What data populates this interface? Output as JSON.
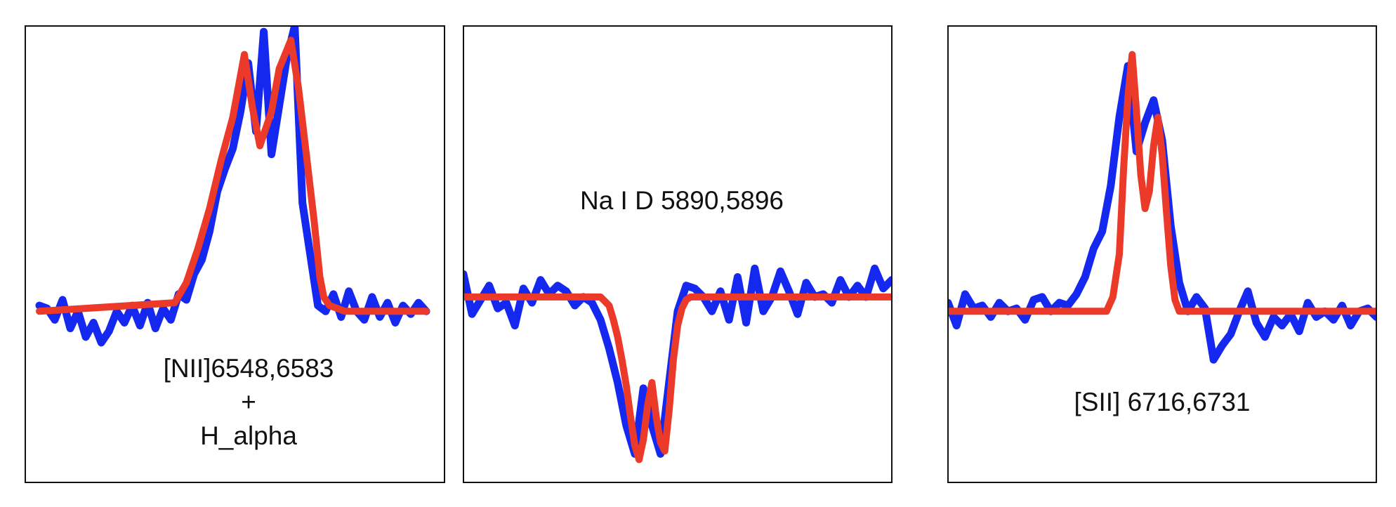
{
  "colors": {
    "observed": "#1428f0",
    "model": "#ec3a2a",
    "frame": "#111111",
    "background": "#ffffff"
  },
  "chart_data": [
    {
      "type": "line",
      "label_lines": [
        "[NII]6548,6583",
        "+",
        "H_alpha"
      ],
      "xlim": [
        0,
        100
      ],
      "ylim": [
        -0.6,
        1.0
      ],
      "series": [
        {
          "role": "observed",
          "x": [
            0,
            2,
            4,
            6,
            8,
            10,
            12,
            14,
            16,
            18,
            20,
            22,
            24,
            26,
            28,
            30,
            32,
            34,
            36,
            38,
            40,
            42,
            44,
            46,
            48,
            50,
            52,
            54,
            56,
            58,
            60,
            62,
            64,
            66,
            68,
            70,
            72,
            74,
            76,
            78,
            80,
            82,
            84,
            86,
            88,
            90,
            92,
            94,
            96,
            98,
            100
          ],
          "y": [
            0.02,
            0.01,
            -0.03,
            0.04,
            -0.06,
            0.0,
            -0.09,
            -0.04,
            -0.11,
            -0.07,
            0.0,
            -0.04,
            0.02,
            -0.05,
            0.03,
            -0.06,
            0.01,
            -0.03,
            0.06,
            0.04,
            0.13,
            0.18,
            0.28,
            0.42,
            0.5,
            0.57,
            0.7,
            0.87,
            0.63,
            0.98,
            0.55,
            0.72,
            0.89,
            1.0,
            0.38,
            0.2,
            0.02,
            0.0,
            0.06,
            -0.02,
            0.07,
            0.0,
            -0.03,
            0.05,
            -0.02,
            0.03,
            -0.04,
            0.02,
            -0.01,
            0.03,
            0.0
          ]
        },
        {
          "role": "model",
          "x": [
            0,
            35,
            38,
            41,
            44,
            47,
            50,
            53,
            55,
            57,
            60,
            62,
            65,
            67,
            69,
            71,
            72.5,
            73.5,
            75,
            77,
            79,
            81,
            83,
            85,
            100
          ],
          "y": [
            0.0,
            0.03,
            0.1,
            0.22,
            0.36,
            0.53,
            0.68,
            0.9,
            0.72,
            0.58,
            0.7,
            0.85,
            0.95,
            0.78,
            0.55,
            0.32,
            0.12,
            0.05,
            0.02,
            0.01,
            0.0,
            0.0,
            0.0,
            0.0,
            0.0
          ]
        }
      ]
    },
    {
      "type": "line",
      "label_lines": [
        "Na I D 5890,5896"
      ],
      "xlim": [
        0,
        100
      ],
      "ylim": [
        -0.65,
        0.95
      ],
      "series": [
        {
          "role": "observed",
          "x": [
            0,
            2,
            4,
            6,
            8,
            10,
            12,
            14,
            16,
            18,
            20,
            22,
            24,
            26,
            28,
            30,
            32,
            34,
            36,
            38,
            40,
            42,
            44,
            46,
            48,
            50,
            52,
            54,
            56,
            58,
            60,
            62,
            64,
            66,
            68,
            70,
            72,
            74,
            76,
            78,
            80,
            82,
            84,
            86,
            88,
            90,
            92,
            94,
            96,
            98,
            100
          ],
          "y": [
            0.08,
            -0.06,
            -0.01,
            0.04,
            -0.04,
            -0.02,
            -0.1,
            0.03,
            -0.02,
            0.06,
            0.01,
            0.04,
            0.02,
            -0.03,
            0.0,
            -0.02,
            -0.08,
            -0.18,
            -0.3,
            -0.45,
            -0.55,
            -0.32,
            -0.45,
            -0.55,
            -0.3,
            -0.05,
            0.04,
            0.03,
            0.0,
            -0.05,
            0.02,
            -0.08,
            0.07,
            -0.09,
            0.1,
            -0.05,
            0.0,
            0.09,
            0.02,
            -0.06,
            0.05,
            0.0,
            0.01,
            -0.02,
            0.06,
            0.0,
            0.04,
            0.0,
            0.1,
            0.03,
            0.06
          ]
        },
        {
          "role": "model",
          "x": [
            0,
            32,
            34,
            35,
            36,
            37,
            38,
            39,
            40,
            41,
            42,
            43,
            44,
            45,
            46,
            47,
            48,
            49,
            50,
            51,
            52,
            53,
            55,
            58,
            100
          ],
          "y": [
            0.0,
            0.0,
            -0.03,
            -0.08,
            -0.14,
            -0.22,
            -0.31,
            -0.42,
            -0.52,
            -0.57,
            -0.5,
            -0.38,
            -0.3,
            -0.42,
            -0.51,
            -0.54,
            -0.4,
            -0.22,
            -0.1,
            -0.04,
            -0.01,
            0.0,
            0.0,
            0.0,
            0.0
          ]
        }
      ]
    },
    {
      "type": "line",
      "label_lines": [
        "[SII] 6716,6731"
      ],
      "xlim": [
        0,
        100
      ],
      "ylim": [
        -0.6,
        1.0
      ],
      "series": [
        {
          "role": "observed",
          "x": [
            0,
            2,
            4,
            6,
            8,
            10,
            12,
            14,
            16,
            18,
            20,
            22,
            24,
            26,
            28,
            30,
            32,
            34,
            36,
            38,
            40,
            42,
            44,
            46,
            48,
            50,
            52,
            54,
            56,
            58,
            60,
            62,
            64,
            66,
            68,
            70,
            72,
            74,
            76,
            78,
            80,
            82,
            84,
            86,
            88,
            90,
            92,
            94,
            96,
            98,
            100
          ],
          "y": [
            0.03,
            -0.05,
            0.06,
            0.01,
            0.02,
            -0.02,
            0.03,
            0.0,
            0.01,
            -0.03,
            0.04,
            0.05,
            0.0,
            0.03,
            0.02,
            0.06,
            0.12,
            0.22,
            0.28,
            0.44,
            0.68,
            0.86,
            0.56,
            0.66,
            0.74,
            0.6,
            0.3,
            0.1,
            0.0,
            0.05,
            0.01,
            -0.17,
            -0.12,
            -0.08,
            0.0,
            0.07,
            -0.04,
            -0.09,
            -0.02,
            -0.05,
            -0.01,
            -0.07,
            0.03,
            -0.02,
            0.0,
            -0.03,
            0.02,
            -0.05,
            0.0,
            0.01,
            -0.02
          ]
        },
        {
          "role": "model",
          "x": [
            0,
            37,
            38.5,
            40,
            41,
            42,
            43,
            44,
            45,
            46,
            47,
            48,
            49,
            50,
            51,
            52,
            53,
            54,
            56,
            60,
            100
          ],
          "y": [
            0.0,
            0.0,
            0.05,
            0.2,
            0.5,
            0.75,
            0.9,
            0.7,
            0.48,
            0.36,
            0.42,
            0.58,
            0.68,
            0.55,
            0.35,
            0.16,
            0.04,
            0.0,
            0.0,
            0.0,
            0.0
          ]
        }
      ]
    }
  ]
}
